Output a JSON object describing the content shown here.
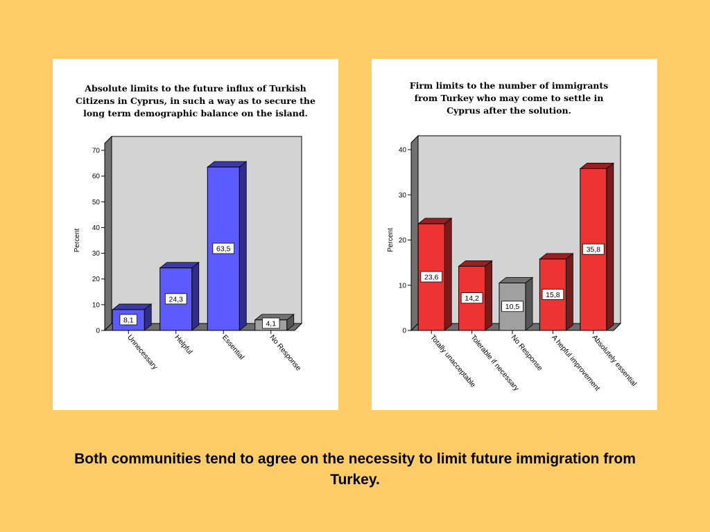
{
  "slide": {
    "caption": "Both communities tend to agree on the necessity to limit future immigration from Turkey."
  },
  "chart_data": [
    {
      "type": "bar",
      "title_lines": [
        "Absolute limits to the future influx of Turkish",
        "Citizens in Cyprus, in such a way as to secure the",
        "long term demographic balance on the island."
      ],
      "ylabel": "Percent",
      "ylim": [
        0,
        70
      ],
      "yticks": [
        0,
        10,
        20,
        30,
        40,
        50,
        60,
        70
      ],
      "categories": [
        "Unnecessary",
        "Helpful",
        "Essential",
        "No Response"
      ],
      "values": [
        8.1,
        24.3,
        63.5,
        4.1
      ],
      "value_labels": [
        "8,1",
        "24,3",
        "63,5",
        "4,1"
      ],
      "bar_colors": [
        "#5B5BFF",
        "#5B5BFF",
        "#5B5BFF",
        "#A0A0A0"
      ],
      "bar_side_colors": [
        "#2E2E8A",
        "#2E2E8A",
        "#2E2E8A",
        "#555555"
      ],
      "bar_top_colors": [
        "#3A3AA8",
        "#3A3AA8",
        "#3A3AA8",
        "#707070"
      ],
      "plot_background": "#D3D3D3",
      "grid": false
    },
    {
      "type": "bar",
      "title_lines": [
        "Firm limits to the number of immigrants",
        "from Turkey who may come to settle in",
        "Cyprus after the solution."
      ],
      "ylabel": "Percent",
      "ylim": [
        0,
        40
      ],
      "yticks": [
        0,
        10,
        20,
        30,
        40
      ],
      "categories": [
        "Totally unacceptable",
        "Tolerable if necessary",
        "No Response",
        "A hepful improvement",
        "Absolutely essential"
      ],
      "values": [
        23.6,
        14.2,
        10.5,
        15.8,
        35.8
      ],
      "value_labels": [
        "23,6",
        "14,2",
        "10,5",
        "15,8",
        "35,8"
      ],
      "bar_colors": [
        "#EE3333",
        "#EE3333",
        "#A0A0A0",
        "#EE3333",
        "#EE3333"
      ],
      "bar_side_colors": [
        "#7A1A1A",
        "#7A1A1A",
        "#555555",
        "#7A1A1A",
        "#7A1A1A"
      ],
      "bar_top_colors": [
        "#9A2020",
        "#9A2020",
        "#707070",
        "#9A2020",
        "#9A2020"
      ],
      "plot_background": "#D3D3D3",
      "grid": false
    }
  ]
}
